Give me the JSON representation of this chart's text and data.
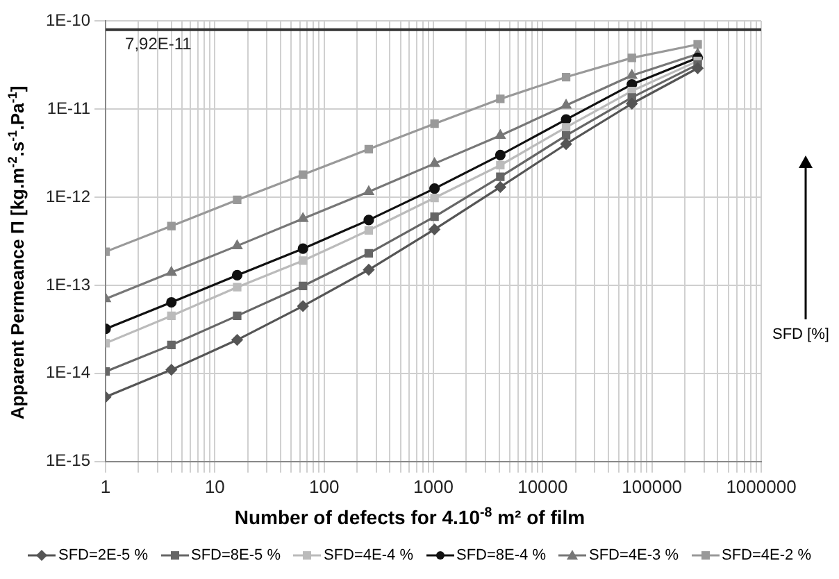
{
  "chart_data": {
    "type": "line",
    "xlabel": "Number of defects for 4.10$^{-8}$ m² of film",
    "ylabel": "Apparent Permeance Π [kg.m$^{-2}$.s$^{-1}$.Pa$^{-1}$]",
    "x": [
      1,
      4,
      16,
      64,
      256,
      1024,
      4096,
      16384,
      65536,
      262144
    ],
    "series": [
      {
        "name": "SFD=2E-5 %",
        "color": "#555555",
        "marker": "diamond",
        "values": [
          5.4e-15,
          1.1e-14,
          2.4e-14,
          5.8e-14,
          1.5e-13,
          4.3e-13,
          1.3e-12,
          4e-12,
          1.15e-11,
          2.9e-11
        ]
      },
      {
        "name": "SFD=8E-5 %",
        "color": "#666666",
        "marker": "square",
        "values": [
          1.05e-14,
          2.1e-14,
          4.5e-14,
          9.8e-14,
          2.3e-13,
          6e-13,
          1.7e-12,
          5e-12,
          1.35e-11,
          3.2e-11
        ]
      },
      {
        "name": "SFD=4E-4 %",
        "color": "#bbbbbb",
        "marker": "square",
        "values": [
          2.2e-14,
          4.5e-14,
          9.5e-14,
          1.9e-13,
          4.2e-13,
          9.8e-13,
          2.3e-12,
          6.2e-12,
          1.6e-11,
          3.5e-11
        ]
      },
      {
        "name": "SFD=8E-4 %",
        "color": "#111111",
        "marker": "circle",
        "values": [
          3.2e-14,
          6.4e-14,
          1.3e-13,
          2.6e-13,
          5.5e-13,
          1.25e-12,
          3e-12,
          7.6e-12,
          1.9e-11,
          3.8e-11
        ]
      },
      {
        "name": "SFD=4E-3 %",
        "color": "#777777",
        "marker": "triangle",
        "values": [
          7e-14,
          1.4e-13,
          2.8e-13,
          5.7e-13,
          1.15e-12,
          2.4e-12,
          5e-12,
          1.1e-11,
          2.4e-11,
          4.2e-11
        ]
      },
      {
        "name": "SFD=4E-2 %",
        "color": "#999999",
        "marker": "square",
        "values": [
          2.4e-13,
          4.7e-13,
          9.3e-13,
          1.8e-12,
          3.5e-12,
          6.8e-12,
          1.3e-11,
          2.3e-11,
          3.8e-11,
          5.4e-11
        ]
      }
    ],
    "log": "xy",
    "xlim": [
      1,
      1000000
    ],
    "xticks": [
      1,
      {
        "value": 2,
        "label": null
      },
      {
        "value": 3,
        "label": null
      },
      {
        "value": 4,
        "label": null
      },
      {
        "value": 5,
        "label": null
      },
      {
        "value": 6,
        "label": null
      },
      {
        "value": 7,
        "label": null
      },
      {
        "value": 8,
        "label": null
      },
      {
        "value": 9,
        "label": null
      },
      10,
      {
        "value": 20,
        "label": null
      },
      {
        "value": 30,
        "label": null
      },
      {
        "value": 40,
        "label": null
      },
      {
        "value": 50,
        "label": null
      },
      {
        "value": 60,
        "label": null
      },
      {
        "value": 70,
        "label": null
      },
      {
        "value": 80,
        "label": null
      },
      {
        "value": 90,
        "label": null
      },
      100,
      {
        "value": 200,
        "label": null
      },
      {
        "value": 300,
        "label": null
      },
      {
        "value": 400,
        "label": null
      },
      {
        "value": 500,
        "label": null
      },
      {
        "value": 600,
        "label": null
      },
      {
        "value": 700,
        "label": null
      },
      {
        "value": 800,
        "label": null
      },
      {
        "value": 900,
        "label": null
      },
      1000,
      {
        "value": 2000,
        "label": null
      },
      {
        "value": 3000,
        "label": null
      },
      {
        "value": 4000,
        "label": null
      },
      {
        "value": 5000,
        "label": null
      },
      {
        "value": 6000,
        "label": null
      },
      {
        "value": 7000,
        "label": null
      },
      {
        "value": 8000,
        "label": null
      },
      {
        "value": 9000,
        "label": null
      },
      10000,
      {
        "value": 20000,
        "label": null
      },
      {
        "value": 30000,
        "label": null
      },
      {
        "value": 40000,
        "label": null
      },
      {
        "value": 50000,
        "label": null
      },
      {
        "value": 60000,
        "label": null
      },
      {
        "value": 70000,
        "label": null
      },
      {
        "value": 80000,
        "label": null
      },
      {
        "value": 90000,
        "label": null
      },
      100000,
      {
        "value": 200000,
        "label": null
      },
      {
        "value": 300000,
        "label": null
      },
      {
        "value": 400000,
        "label": null
      },
      {
        "value": 500000,
        "label": null
      },
      {
        "value": 600000,
        "label": null
      },
      {
        "value": 700000,
        "label": null
      },
      {
        "value": 800000,
        "label": null
      },
      {
        "value": 900000,
        "label": null
      },
      1000000
    ],
    "ylim": [
      1e-15,
      1e-10
    ],
    "yticks": [
      {
        "value": 1e-15,
        "label": "1E-15"
      },
      {
        "value": 1e-14,
        "label": "1E-14"
      },
      {
        "value": 1e-13,
        "label": "1E-13"
      },
      {
        "value": 1e-12,
        "label": "1E-12"
      },
      {
        "value": 1e-11,
        "label": "1E-11"
      },
      {
        "value": 1e-10,
        "label": "1E-10"
      }
    ],
    "ref_lines": [
      {
        "axis": "y",
        "value": 7.92e-11,
        "label": "7,92E-11",
        "color": "#333333"
      }
    ],
    "annotations": [
      "SFD [%]"
    ],
    "grid": true,
    "legend": "bottom",
    "line_style": "solid"
  }
}
